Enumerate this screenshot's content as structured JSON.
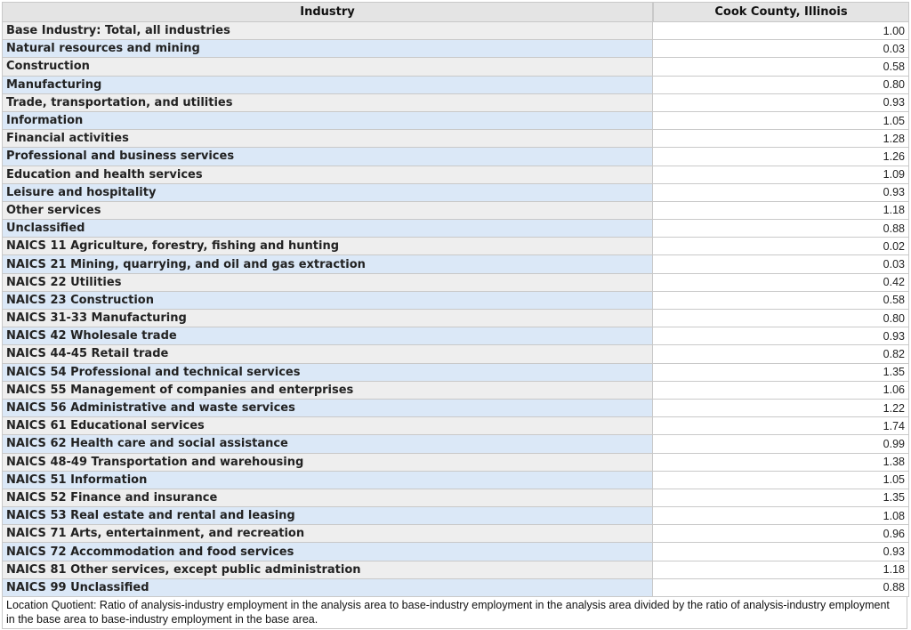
{
  "table": {
    "headers": [
      "Industry",
      "Cook County, Illinois"
    ],
    "rows": [
      [
        "Base Industry: Total, all industries",
        "1.00"
      ],
      [
        "Natural resources and mining",
        "0.03"
      ],
      [
        "Construction",
        "0.58"
      ],
      [
        "Manufacturing",
        "0.80"
      ],
      [
        "Trade, transportation, and utilities",
        "0.93"
      ],
      [
        "Information",
        "1.05"
      ],
      [
        "Financial activities",
        "1.28"
      ],
      [
        "Professional and business services",
        "1.26"
      ],
      [
        "Education and health services",
        "1.09"
      ],
      [
        "Leisure and hospitality",
        "0.93"
      ],
      [
        "Other services",
        "1.18"
      ],
      [
        "Unclassified",
        "0.88"
      ],
      [
        "NAICS 11 Agriculture, forestry, fishing and hunting",
        "0.02"
      ],
      [
        "NAICS 21 Mining, quarrying, and oil and gas extraction",
        "0.03"
      ],
      [
        "NAICS 22 Utilities",
        "0.42"
      ],
      [
        "NAICS 23 Construction",
        "0.58"
      ],
      [
        "NAICS 31-33 Manufacturing",
        "0.80"
      ],
      [
        "NAICS 42 Wholesale trade",
        "0.93"
      ],
      [
        "NAICS 44-45 Retail trade",
        "0.82"
      ],
      [
        "NAICS 54 Professional and technical services",
        "1.35"
      ],
      [
        "NAICS 55 Management of companies and enterprises",
        "1.06"
      ],
      [
        "NAICS 56 Administrative and waste services",
        "1.22"
      ],
      [
        "NAICS 61 Educational services",
        "1.74"
      ],
      [
        "NAICS 62 Health care and social assistance",
        "0.99"
      ],
      [
        "NAICS 48-49 Transportation and warehousing",
        "1.38"
      ],
      [
        "NAICS 51 Information",
        "1.05"
      ],
      [
        "NAICS 52 Finance and insurance",
        "1.35"
      ],
      [
        "NAICS 53 Real estate and rental and leasing",
        "1.08"
      ],
      [
        "NAICS 71 Arts, entertainment, and recreation",
        "0.96"
      ],
      [
        "NAICS 72 Accommodation and food services",
        "0.93"
      ],
      [
        "NAICS 81 Other services, except public administration",
        "1.18"
      ],
      [
        "NAICS 99 Unclassified",
        "0.88"
      ]
    ],
    "footnote": "Location Quotient: Ratio of analysis-industry employment in the analysis area to base-industry employment in the analysis area divided by the ratio of analysis-industry employment in the base area to base-industry employment in the base area."
  }
}
